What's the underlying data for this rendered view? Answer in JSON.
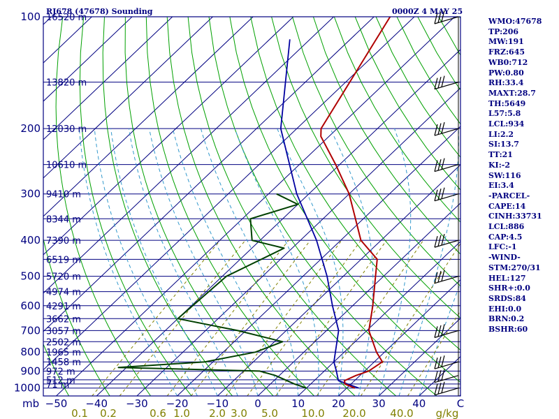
{
  "header": {
    "station": "RJ678 (47678) Sounding",
    "time": "0000Z  4 MAY 25"
  },
  "indices": [
    "WMO:47678",
    "TP:206",
    "MW:191",
    "FRZ:645",
    "WB0:712",
    "PW:0.80",
    "RH:33.4",
    "MAXT:28.7",
    "TH:5649",
    "L57:5.8",
    "LCL:934",
    "LI:2.2",
    "SI:13.7",
    "TT:21",
    "KI:-2",
    "SW:116",
    "EI:3.4",
    "-PARCEL-",
    "CAPE:14",
    "CINH:33731",
    "LCL:886",
    "CAP:4.5",
    "LFC:-1",
    "-WIND-",
    "STM:270/31",
    "HEL:127",
    "SHR+:0.0",
    "SRDS:84",
    "EHI:0.0",
    "BRN:0.2",
    "BSHR:60"
  ],
  "colors": {
    "isobar": "#000080",
    "isotherm": "#000080",
    "dry_adiabat": "#00a000",
    "moist_adiabat": "#3399cc",
    "mixing_ratio": "#808000",
    "temperature": "#b00000",
    "dewpoint": "#004000",
    "parcel": "#0000a0",
    "wind": "#000000"
  },
  "chart_data": {
    "type": "skew-t",
    "pressure_axis_unit": "mb",
    "pressure_ticks": [
      100,
      200,
      300,
      400,
      500,
      600,
      700,
      800,
      900,
      1000
    ],
    "temperature_axis_unit": "C",
    "temperature_ticks": [
      -50,
      -40,
      -30,
      -20,
      -10,
      0,
      10,
      20,
      30,
      40
    ],
    "temperature_tick_labels": [
      "−50",
      "−40",
      "−30",
      "−20",
      "−10",
      "0",
      "10",
      "20",
      "30",
      "40"
    ],
    "mixing_ratio_unit": "g/kg",
    "mixing_ratio_ticks": [
      "0.1",
      "0.2",
      "0.6",
      "1.0",
      "2.0",
      "3.0",
      "5.0",
      "10.0",
      "20.0",
      "40.0"
    ],
    "height_levels": [
      {
        "p": 100,
        "label": "16520 m"
      },
      {
        "p": 150,
        "label": "13820 m"
      },
      {
        "p": 200,
        "label": "12030 m"
      },
      {
        "p": 250,
        "label": "10610 m"
      },
      {
        "p": 300,
        "label": "9410 m"
      },
      {
        "p": 350,
        "label": "8344 m"
      },
      {
        "p": 400,
        "label": "7390 m"
      },
      {
        "p": 450,
        "label": "6519 m"
      },
      {
        "p": 500,
        "label": "5720 m"
      },
      {
        "p": 550,
        "label": "4974 m"
      },
      {
        "p": 600,
        "label": "4291 m"
      },
      {
        "p": 650,
        "label": "3662 m"
      },
      {
        "p": 700,
        "label": "3057 m"
      },
      {
        "p": 750,
        "label": "2502 m"
      },
      {
        "p": 800,
        "label": "1965 m"
      },
      {
        "p": 850,
        "label": "1458 m"
      },
      {
        "p": 900,
        "label": "972 m"
      },
      {
        "p": 950,
        "label": "512 m"
      },
      {
        "p": 975,
        "label": "71 m"
      }
    ],
    "temperature_profile": [
      {
        "p": 1000,
        "t": 22.0
      },
      {
        "p": 975,
        "t": 18.5
      },
      {
        "p": 955,
        "t": 17.5
      },
      {
        "p": 925,
        "t": 19.0
      },
      {
        "p": 900,
        "t": 21.0
      },
      {
        "p": 850,
        "t": 22.0
      },
      {
        "p": 800,
        "t": 18.0
      },
      {
        "p": 700,
        "t": 10.5
      },
      {
        "p": 600,
        "t": 5.0
      },
      {
        "p": 500,
        "t": -2.0
      },
      {
        "p": 450,
        "t": -6.0
      },
      {
        "p": 400,
        "t": -15.0
      },
      {
        "p": 300,
        "t": -30.0
      },
      {
        "p": 250,
        "t": -41.0
      },
      {
        "p": 210,
        "t": -52.0
      },
      {
        "p": 200,
        "t": -54.0
      },
      {
        "p": 100,
        "t": -66.0
      }
    ],
    "dewpoint_profile": [
      {
        "p": 1000,
        "t": 10.0
      },
      {
        "p": 975,
        "t": 6.0
      },
      {
        "p": 925,
        "t": -1.0
      },
      {
        "p": 900,
        "t": -6.0
      },
      {
        "p": 880,
        "t": -42.0
      },
      {
        "p": 850,
        "t": -22.0
      },
      {
        "p": 800,
        "t": -12.0
      },
      {
        "p": 750,
        "t": -8.0
      },
      {
        "p": 700,
        "t": -22.0
      },
      {
        "p": 650,
        "t": -40.0
      },
      {
        "p": 500,
        "t": -39.0
      },
      {
        "p": 420,
        "t": -32.0
      },
      {
        "p": 400,
        "t": -42.0
      },
      {
        "p": 350,
        "t": -48.0
      },
      {
        "p": 320,
        "t": -40.0
      },
      {
        "p": 300,
        "t": -48.0
      }
    ],
    "parcel_profile": [
      {
        "p": 1000,
        "t": 23.0
      },
      {
        "p": 955,
        "t": 16.0
      },
      {
        "p": 900,
        "t": 13.0
      },
      {
        "p": 850,
        "t": 10.0
      },
      {
        "p": 700,
        "t": 3.0
      },
      {
        "p": 600,
        "t": -5.0
      },
      {
        "p": 500,
        "t": -14.0
      },
      {
        "p": 400,
        "t": -26.0
      },
      {
        "p": 300,
        "t": -43.0
      },
      {
        "p": 200,
        "t": -64.0
      },
      {
        "p": 115,
        "t": -85.0
      }
    ],
    "wind_barbs": [
      {
        "p": 100
      },
      {
        "p": 150
      },
      {
        "p": 200
      },
      {
        "p": 250
      },
      {
        "p": 300
      },
      {
        "p": 400
      },
      {
        "p": 500
      },
      {
        "p": 700
      },
      {
        "p": 850
      },
      {
        "p": 925
      },
      {
        "p": 1000
      }
    ]
  }
}
